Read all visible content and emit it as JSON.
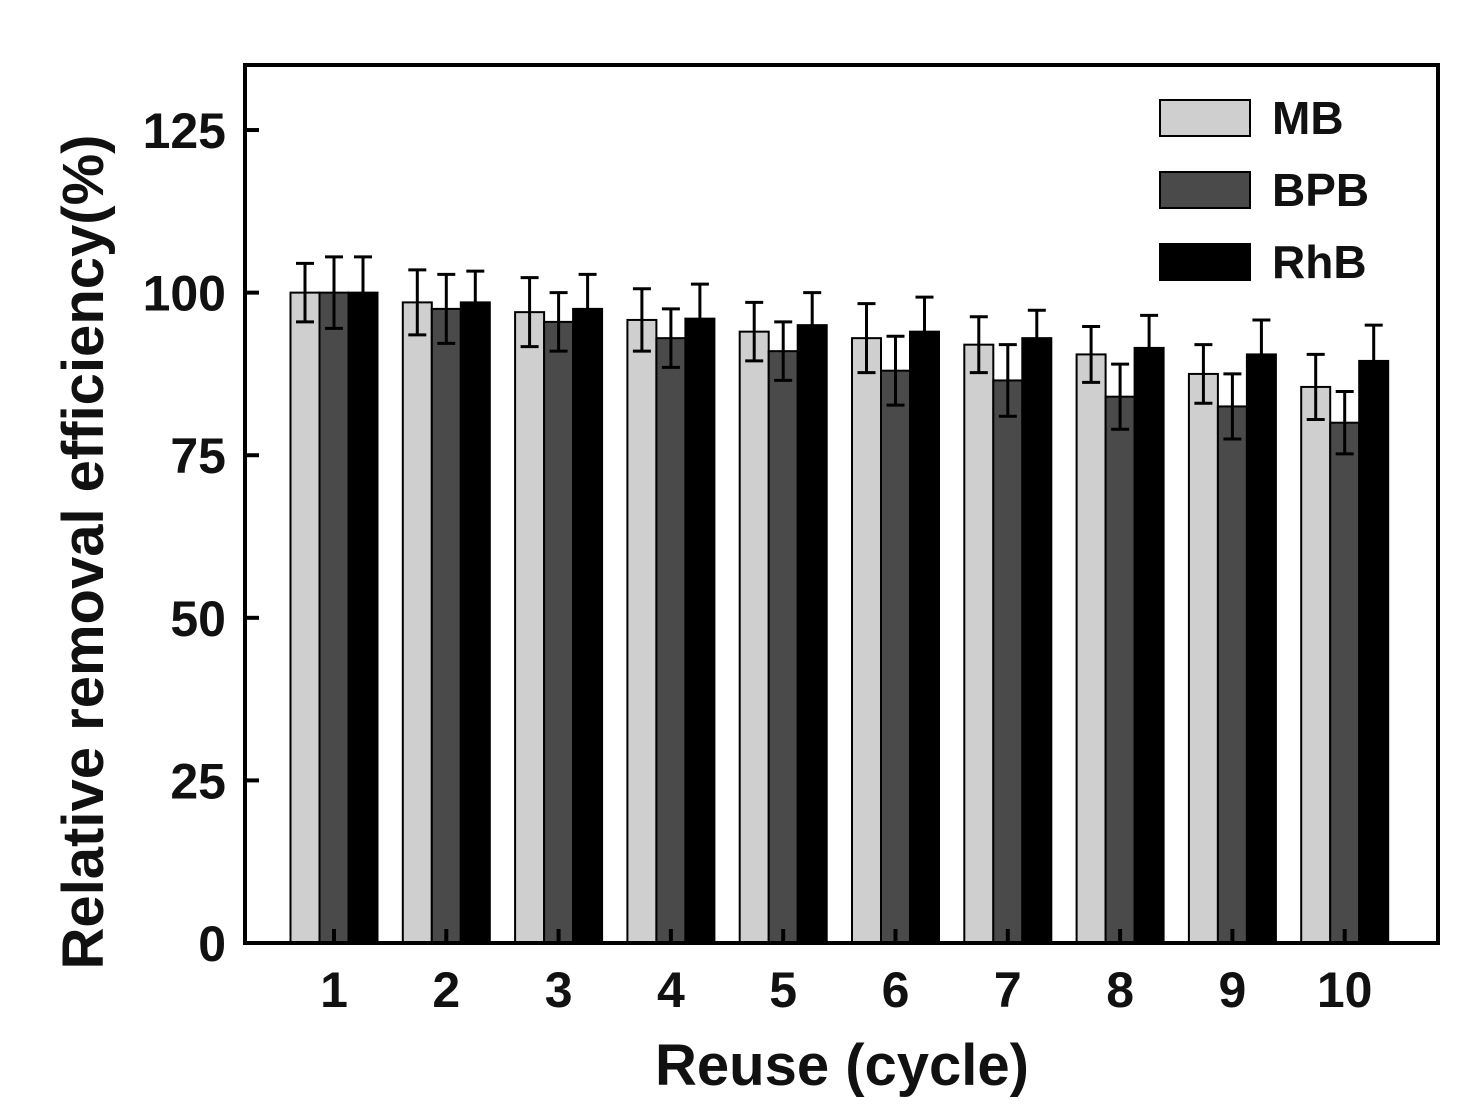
{
  "chart_data": {
    "type": "bar",
    "title": "",
    "xlabel": "Reuse (cycle)",
    "ylabel": "Relative removal  efficiency(%)",
    "ylim": [
      0,
      135
    ],
    "yticks": [
      0,
      25,
      50,
      75,
      100,
      125
    ],
    "categories": [
      "1",
      "2",
      "3",
      "4",
      "5",
      "6",
      "7",
      "8",
      "9",
      "10"
    ],
    "series": [
      {
        "name": "MB",
        "color": "#cfcfcf",
        "values": [
          100,
          98.5,
          97,
          95.8,
          94,
          93,
          92,
          90.5,
          87.5,
          85.5
        ],
        "errors": [
          4.5,
          5,
          5.3,
          4.8,
          4.5,
          5.3,
          4.3,
          4.3,
          4.5,
          5
        ]
      },
      {
        "name": "BPB",
        "color": "#4a4a4a",
        "values": [
          100,
          97.5,
          95.5,
          93,
          91,
          88,
          86.5,
          84,
          82.5,
          80
        ],
        "errors": [
          5.5,
          5.3,
          4.5,
          4.5,
          4.5,
          5.3,
          5.5,
          5,
          5,
          4.8
        ]
      },
      {
        "name": "RhB",
        "color": "#000000",
        "values": [
          100,
          98.5,
          97.5,
          96,
          95,
          94,
          93,
          91.5,
          90.5,
          89.5
        ],
        "errors": [
          5.5,
          4.8,
          5.3,
          5.3,
          5,
          5.3,
          4.3,
          5,
          5.3,
          5.5
        ]
      }
    ],
    "legend_position": "top-right",
    "grid": false
  }
}
